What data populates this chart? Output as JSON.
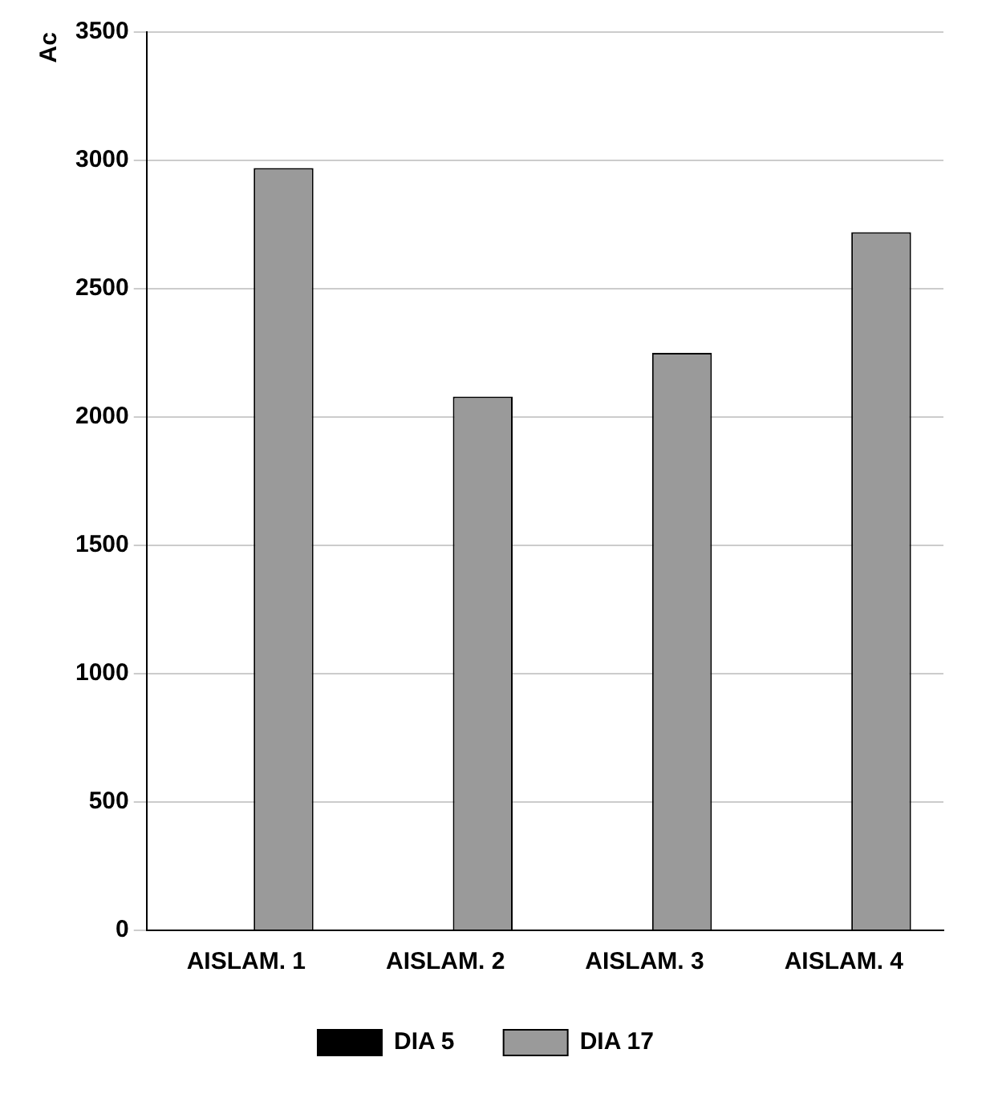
{
  "chart_data": {
    "type": "bar",
    "ylabel": "Ac",
    "categories": [
      "AISLAM. 1",
      "AISLAM. 2",
      "AISLAM. 3",
      "AISLAM. 4"
    ],
    "series": [
      {
        "name": "DIA 5",
        "color": "#000000",
        "values": [
          0,
          0,
          0,
          0
        ]
      },
      {
        "name": "DIA 17",
        "color": "#9a9a9a",
        "values": [
          2970,
          2080,
          2250,
          2720
        ]
      }
    ],
    "ylim": [
      0,
      3500
    ],
    "yticks": [
      0,
      500,
      1000,
      1500,
      2000,
      2500,
      3000,
      3500
    ],
    "grid": "y",
    "legend": "bottom"
  }
}
